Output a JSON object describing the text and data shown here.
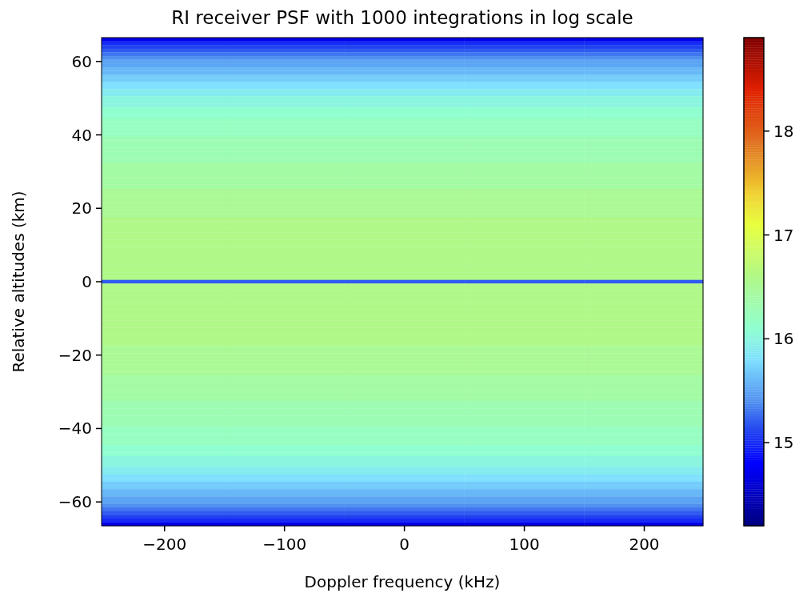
{
  "chart_data": {
    "type": "heatmap",
    "title": "RI receiver PSF with 1000 integrations in log scale",
    "xlabel": "Doppler frequency (kHz)",
    "ylabel": "Relative altitudes (km)",
    "x": [
      -200,
      -100,
      0,
      100,
      200
    ],
    "y": [
      66,
      65,
      64,
      63,
      62,
      61,
      60,
      59,
      58,
      57,
      56,
      55,
      54,
      53,
      52,
      51,
      50,
      49,
      48,
      47,
      46,
      45,
      44,
      43,
      42,
      41,
      40,
      39,
      38,
      37,
      36,
      35,
      34,
      33,
      32,
      31,
      30,
      29,
      28,
      27,
      26,
      25,
      24,
      23,
      22,
      21,
      20,
      19,
      18,
      17,
      16,
      15,
      14,
      13,
      12,
      11,
      10,
      9,
      8,
      7,
      6,
      5,
      4,
      3,
      2,
      1,
      0,
      -1,
      -2,
      -3,
      -4,
      -5,
      -6,
      -7,
      -8,
      -9,
      -10,
      -11,
      -12,
      -13,
      -14,
      -15,
      -16,
      -17,
      -18,
      -19,
      -20,
      -21,
      -22,
      -23,
      -24,
      -25,
      -26,
      -27,
      -28,
      -29,
      -30,
      -31,
      -32,
      -33,
      -34,
      -35,
      -36,
      -37,
      -38,
      -39,
      -40,
      -41,
      -42,
      -43,
      -44,
      -45,
      -46,
      -47,
      -48,
      -49,
      -50,
      -51,
      -52,
      -53,
      -54,
      -55,
      -56,
      -57,
      -58,
      -59,
      -60,
      -61,
      -62,
      -63,
      -64,
      -65,
      -66
    ],
    "cells": [
      [
        14.7,
        14.7,
        14.7,
        14.7,
        14.7
      ],
      [
        15.0,
        15.0,
        15.0,
        15.0,
        15.0
      ],
      [
        15.1,
        15.1,
        15.1,
        15.1,
        15.1
      ],
      [
        15.2,
        15.2,
        15.2,
        15.2,
        15.2
      ],
      [
        15.3,
        15.3,
        15.3,
        15.3,
        15.3
      ],
      [
        15.4,
        15.4,
        15.4,
        15.4,
        15.4
      ],
      [
        15.5,
        15.5,
        15.5,
        15.5,
        15.5
      ],
      [
        15.5,
        15.5,
        15.5,
        15.5,
        15.5
      ],
      [
        15.6,
        15.6,
        15.6,
        15.6,
        15.6
      ],
      [
        15.6,
        15.6,
        15.6,
        15.6,
        15.6
      ],
      [
        15.7,
        15.7,
        15.7,
        15.7,
        15.7
      ],
      [
        15.7,
        15.7,
        15.7,
        15.7,
        15.7
      ],
      [
        15.8,
        15.8,
        15.8,
        15.8,
        15.8
      ],
      [
        15.8,
        15.8,
        15.8,
        15.8,
        15.8
      ],
      [
        15.9,
        15.9,
        15.9,
        15.9,
        15.9
      ],
      [
        15.9,
        15.9,
        15.9,
        15.9,
        15.9
      ],
      [
        16.0,
        16.0,
        16.0,
        16.0,
        16.0
      ],
      [
        16.0,
        16.0,
        16.0,
        16.0,
        16.0
      ],
      [
        16.0,
        16.0,
        16.0,
        16.0,
        16.0
      ],
      [
        16.1,
        16.1,
        16.1,
        16.1,
        16.1
      ],
      [
        16.1,
        16.1,
        16.1,
        16.1,
        16.1
      ],
      [
        16.1,
        16.1,
        16.1,
        16.1,
        16.1
      ],
      [
        16.2,
        16.2,
        16.2,
        16.2,
        16.2
      ],
      [
        16.2,
        16.2,
        16.2,
        16.2,
        16.2
      ],
      [
        16.2,
        16.2,
        16.2,
        16.2,
        16.2
      ],
      [
        16.2,
        16.2,
        16.2,
        16.2,
        16.2
      ],
      [
        16.2,
        16.2,
        16.2,
        16.2,
        16.2
      ],
      [
        16.3,
        16.3,
        16.3,
        16.3,
        16.3
      ],
      [
        16.3,
        16.3,
        16.3,
        16.3,
        16.3
      ],
      [
        16.3,
        16.3,
        16.3,
        16.3,
        16.3
      ],
      [
        16.3,
        16.3,
        16.3,
        16.3,
        16.3
      ],
      [
        16.3,
        16.3,
        16.3,
        16.3,
        16.3
      ],
      [
        16.3,
        16.3,
        16.3,
        16.3,
        16.3
      ],
      [
        16.3,
        16.3,
        16.3,
        16.3,
        16.3
      ],
      [
        16.4,
        16.4,
        16.4,
        16.4,
        16.4
      ],
      [
        16.4,
        16.4,
        16.4,
        16.4,
        16.4
      ],
      [
        16.4,
        16.4,
        16.4,
        16.4,
        16.4
      ],
      [
        16.4,
        16.4,
        16.4,
        16.4,
        16.4
      ],
      [
        16.4,
        16.4,
        16.4,
        16.4,
        16.4
      ],
      [
        16.4,
        16.4,
        16.4,
        16.4,
        16.4
      ],
      [
        16.4,
        16.4,
        16.4,
        16.4,
        16.4
      ],
      [
        16.5,
        16.5,
        16.5,
        16.5,
        16.5
      ],
      [
        16.5,
        16.5,
        16.5,
        16.5,
        16.5
      ],
      [
        16.5,
        16.5,
        16.5,
        16.5,
        16.5
      ],
      [
        16.5,
        16.5,
        16.5,
        16.5,
        16.5
      ],
      [
        16.5,
        16.5,
        16.5,
        16.5,
        16.5
      ],
      [
        16.5,
        16.5,
        16.5,
        16.5,
        16.5
      ],
      [
        16.5,
        16.5,
        16.5,
        16.5,
        16.5
      ],
      [
        16.5,
        16.5,
        16.5,
        16.5,
        16.5
      ],
      [
        16.6,
        16.6,
        16.6,
        16.6,
        16.6
      ],
      [
        16.6,
        16.6,
        16.6,
        16.6,
        16.6
      ],
      [
        16.6,
        16.6,
        16.6,
        16.6,
        16.6
      ],
      [
        16.6,
        16.6,
        16.6,
        16.6,
        16.6
      ],
      [
        16.6,
        16.6,
        16.6,
        16.6,
        16.6
      ],
      [
        16.6,
        16.6,
        16.6,
        16.6,
        16.6
      ],
      [
        16.6,
        16.6,
        16.6,
        16.6,
        16.6
      ],
      [
        16.6,
        16.6,
        16.6,
        16.6,
        16.6
      ],
      [
        16.6,
        16.6,
        16.6,
        16.6,
        16.6
      ],
      [
        16.6,
        16.6,
        16.6,
        16.6,
        16.6
      ],
      [
        16.6,
        16.6,
        16.6,
        16.6,
        16.6
      ],
      [
        16.6,
        16.6,
        16.6,
        16.6,
        16.6
      ],
      [
        16.6,
        16.6,
        16.6,
        16.6,
        16.6
      ],
      [
        16.6,
        16.6,
        16.6,
        16.6,
        16.6
      ],
      [
        16.6,
        16.6,
        16.6,
        16.6,
        16.6
      ],
      [
        16.6,
        16.6,
        16.6,
        16.6,
        16.6
      ],
      [
        16.6,
        16.6,
        16.6,
        16.6,
        16.6
      ],
      [
        15.2,
        15.2,
        15.2,
        15.2,
        15.2
      ],
      [
        16.6,
        16.6,
        16.6,
        16.6,
        16.6
      ],
      [
        16.6,
        16.6,
        16.6,
        16.6,
        16.6
      ],
      [
        16.6,
        16.6,
        16.6,
        16.6,
        16.6
      ],
      [
        16.6,
        16.6,
        16.6,
        16.6,
        16.6
      ],
      [
        16.6,
        16.6,
        16.6,
        16.6,
        16.6
      ],
      [
        16.6,
        16.6,
        16.6,
        16.6,
        16.6
      ],
      [
        16.6,
        16.6,
        16.6,
        16.6,
        16.6
      ],
      [
        16.6,
        16.6,
        16.6,
        16.6,
        16.6
      ],
      [
        16.6,
        16.6,
        16.6,
        16.6,
        16.6
      ],
      [
        16.6,
        16.6,
        16.6,
        16.6,
        16.6
      ],
      [
        16.6,
        16.6,
        16.6,
        16.6,
        16.6
      ],
      [
        16.6,
        16.6,
        16.6,
        16.6,
        16.6
      ],
      [
        16.6,
        16.6,
        16.6,
        16.6,
        16.6
      ],
      [
        16.6,
        16.6,
        16.6,
        16.6,
        16.6
      ],
      [
        16.6,
        16.6,
        16.6,
        16.6,
        16.6
      ],
      [
        16.6,
        16.6,
        16.6,
        16.6,
        16.6
      ],
      [
        16.6,
        16.6,
        16.6,
        16.6,
        16.6
      ],
      [
        16.5,
        16.5,
        16.5,
        16.5,
        16.5
      ],
      [
        16.5,
        16.5,
        16.5,
        16.5,
        16.5
      ],
      [
        16.5,
        16.5,
        16.5,
        16.5,
        16.5
      ],
      [
        16.5,
        16.5,
        16.5,
        16.5,
        16.5
      ],
      [
        16.5,
        16.5,
        16.5,
        16.5,
        16.5
      ],
      [
        16.5,
        16.5,
        16.5,
        16.5,
        16.5
      ],
      [
        16.5,
        16.5,
        16.5,
        16.5,
        16.5
      ],
      [
        16.5,
        16.5,
        16.5,
        16.5,
        16.5
      ],
      [
        16.4,
        16.4,
        16.4,
        16.4,
        16.4
      ],
      [
        16.4,
        16.4,
        16.4,
        16.4,
        16.4
      ],
      [
        16.4,
        16.4,
        16.4,
        16.4,
        16.4
      ],
      [
        16.4,
        16.4,
        16.4,
        16.4,
        16.4
      ],
      [
        16.4,
        16.4,
        16.4,
        16.4,
        16.4
      ],
      [
        16.4,
        16.4,
        16.4,
        16.4,
        16.4
      ],
      [
        16.4,
        16.4,
        16.4,
        16.4,
        16.4
      ],
      [
        16.3,
        16.3,
        16.3,
        16.3,
        16.3
      ],
      [
        16.3,
        16.3,
        16.3,
        16.3,
        16.3
      ],
      [
        16.3,
        16.3,
        16.3,
        16.3,
        16.3
      ],
      [
        16.3,
        16.3,
        16.3,
        16.3,
        16.3
      ],
      [
        16.3,
        16.3,
        16.3,
        16.3,
        16.3
      ],
      [
        16.3,
        16.3,
        16.3,
        16.3,
        16.3
      ],
      [
        16.3,
        16.3,
        16.3,
        16.3,
        16.3
      ],
      [
        16.2,
        16.2,
        16.2,
        16.2,
        16.2
      ],
      [
        16.2,
        16.2,
        16.2,
        16.2,
        16.2
      ],
      [
        16.2,
        16.2,
        16.2,
        16.2,
        16.2
      ],
      [
        16.2,
        16.2,
        16.2,
        16.2,
        16.2
      ],
      [
        16.2,
        16.2,
        16.2,
        16.2,
        16.2
      ],
      [
        16.1,
        16.1,
        16.1,
        16.1,
        16.1
      ],
      [
        16.1,
        16.1,
        16.1,
        16.1,
        16.1
      ],
      [
        16.1,
        16.1,
        16.1,
        16.1,
        16.1
      ],
      [
        16.0,
        16.0,
        16.0,
        16.0,
        16.0
      ],
      [
        16.0,
        16.0,
        16.0,
        16.0,
        16.0
      ],
      [
        16.0,
        16.0,
        16.0,
        16.0,
        16.0
      ],
      [
        15.9,
        15.9,
        15.9,
        15.9,
        15.9
      ],
      [
        15.9,
        15.9,
        15.9,
        15.9,
        15.9
      ],
      [
        15.8,
        15.8,
        15.8,
        15.8,
        15.8
      ],
      [
        15.8,
        15.8,
        15.8,
        15.8,
        15.8
      ],
      [
        15.7,
        15.7,
        15.7,
        15.7,
        15.7
      ],
      [
        15.7,
        15.7,
        15.7,
        15.7,
        15.7
      ],
      [
        15.6,
        15.6,
        15.6,
        15.6,
        15.6
      ],
      [
        15.6,
        15.6,
        15.6,
        15.6,
        15.6
      ],
      [
        15.5,
        15.5,
        15.5,
        15.5,
        15.5
      ],
      [
        15.5,
        15.5,
        15.5,
        15.5,
        15.5
      ],
      [
        15.4,
        15.4,
        15.4,
        15.4,
        15.4
      ],
      [
        15.3,
        15.3,
        15.3,
        15.3,
        15.3
      ],
      [
        15.2,
        15.2,
        15.2,
        15.2,
        15.2
      ],
      [
        15.1,
        15.1,
        15.1,
        15.1,
        15.1
      ],
      [
        15.0,
        15.0,
        15.0,
        15.0,
        15.0
      ],
      [
        14.7,
        14.7,
        14.7,
        14.7,
        14.7
      ]
    ],
    "xlim": [
      -252.5,
      249
    ],
    "xticks": [
      {
        "value": -200,
        "label": "−200"
      },
      {
        "value": -100,
        "label": "−100"
      },
      0,
      100,
      200
    ],
    "ylim": [
      -66.5,
      66.5
    ],
    "yticks": [
      {
        "value": -60,
        "label": "−60"
      },
      {
        "value": -40,
        "label": "−40"
      },
      {
        "value": -20,
        "label": "−20"
      },
      0,
      20,
      40,
      60
    ],
    "clim": [
      14.2,
      18.9
    ],
    "cticks": [
      15,
      16,
      17,
      18
    ]
  }
}
